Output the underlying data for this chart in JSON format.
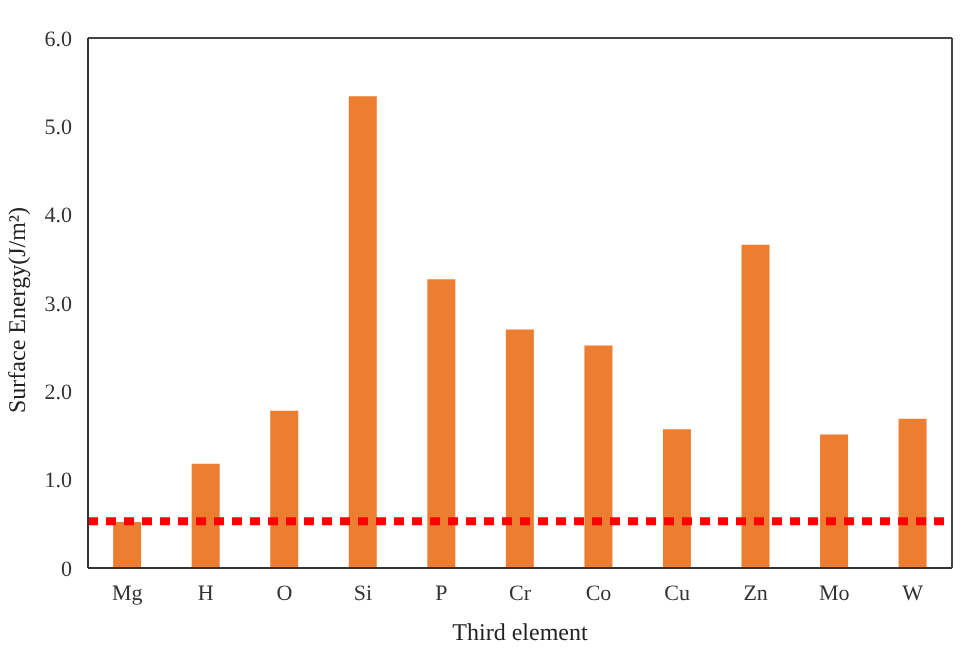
{
  "chart_data": {
    "type": "bar",
    "xlabel": "Third element",
    "ylabel": "Surface Energy(J/m²)",
    "categories": [
      "Mg",
      "H",
      "O",
      "Si",
      "P",
      "Cr",
      "Co",
      "Cu",
      "Zn",
      "Mo",
      "W"
    ],
    "values": [
      0.52,
      1.18,
      1.78,
      5.34,
      3.27,
      2.7,
      2.52,
      1.57,
      3.66,
      1.51,
      1.69
    ],
    "color": "#ed7d31",
    "ylim": [
      0,
      6
    ],
    "yticks": [
      0,
      {
        "value": 1,
        "label": "1.0"
      },
      {
        "value": 2,
        "label": "2.0"
      },
      {
        "value": 3,
        "label": "3.0"
      },
      {
        "value": 4,
        "label": "4.0"
      },
      {
        "value": 5,
        "label": "5.0"
      },
      {
        "value": 6,
        "label": "6.0"
      }
    ],
    "ref_lines": [
      {
        "axis": "y",
        "value": 0.53,
        "color": "#ff0000",
        "line_style": "dotted"
      }
    ],
    "grid": false,
    "legend": false
  }
}
